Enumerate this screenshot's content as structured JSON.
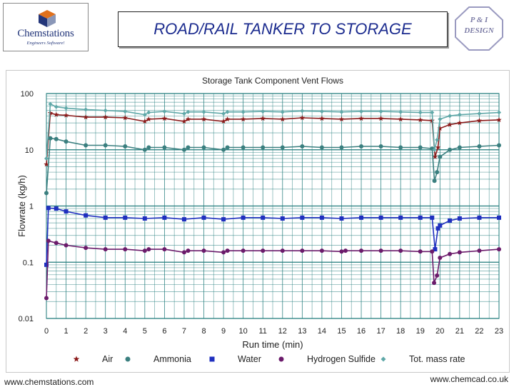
{
  "header": {
    "logo_name": "Chemstations",
    "logo_tagline": "Engineers Software!",
    "title": "ROAD/RAIL TANKER TO STORAGE",
    "badge_line1": "P & I",
    "badge_line2": "DESIGN"
  },
  "footer": {
    "left": "www.chemstations.com",
    "right": "www.chemcad.co.uk"
  },
  "colors": {
    "title": "#1c2c8f",
    "air": "#8b1a1a",
    "ammonia": "#3a7f7f",
    "water": "#1f2fbf",
    "hydrogen_sulfide": "#6b1b6b",
    "tot_mass_rate": "#5fa8a8",
    "grid": "#1f7a7a"
  },
  "chart_data": {
    "type": "line",
    "title": "Storage Tank Component Vent Flows",
    "xlabel": "Run time  (min)",
    "ylabel": "Flowrate (kg/h)",
    "y_scale": "log",
    "xlim": [
      0,
      23
    ],
    "ylim": [
      0.01,
      100
    ],
    "x_ticks": [
      "0",
      "1",
      "2",
      "3",
      "4",
      "5",
      "6",
      "7",
      "8",
      "9",
      "10",
      "11",
      "12",
      "13",
      "14",
      "15",
      "16",
      "17",
      "18",
      "19",
      "20",
      "21",
      "22",
      "23"
    ],
    "y_ticks": [
      "100",
      "10",
      "1",
      "0.1",
      "0.01"
    ],
    "grid": true,
    "legend_position": "bottom",
    "series": [
      {
        "name": "Air",
        "marker": "star",
        "points": [
          [
            0,
            5.5
          ],
          [
            0.2,
            45
          ],
          [
            0.5,
            42
          ],
          [
            1,
            41
          ],
          [
            2,
            38
          ],
          [
            3,
            38
          ],
          [
            4,
            37
          ],
          [
            5,
            32
          ],
          [
            5.2,
            35
          ],
          [
            6,
            36
          ],
          [
            7,
            32
          ],
          [
            7.2,
            35
          ],
          [
            8,
            35
          ],
          [
            9,
            32
          ],
          [
            9.2,
            35
          ],
          [
            10,
            35
          ],
          [
            11,
            36
          ],
          [
            12,
            35
          ],
          [
            13,
            37
          ],
          [
            14,
            36
          ],
          [
            15,
            35
          ],
          [
            16,
            36
          ],
          [
            17,
            36
          ],
          [
            18,
            35
          ],
          [
            19,
            34
          ],
          [
            19.6,
            33
          ],
          [
            19.75,
            7.5
          ],
          [
            19.9,
            11
          ],
          [
            20,
            24
          ],
          [
            20.5,
            28
          ],
          [
            21,
            30
          ],
          [
            22,
            33
          ],
          [
            23,
            34
          ]
        ]
      },
      {
        "name": "Ammonia",
        "marker": "circle",
        "points": [
          [
            0,
            1.7
          ],
          [
            0.2,
            16
          ],
          [
            0.5,
            15.5
          ],
          [
            1,
            14
          ],
          [
            2,
            12
          ],
          [
            3,
            12
          ],
          [
            4,
            11.5
          ],
          [
            5,
            10
          ],
          [
            5.2,
            11
          ],
          [
            6,
            11
          ],
          [
            7,
            10
          ],
          [
            7.2,
            11
          ],
          [
            8,
            11
          ],
          [
            9,
            10
          ],
          [
            9.2,
            11
          ],
          [
            10,
            11
          ],
          [
            11,
            11
          ],
          [
            12,
            11
          ],
          [
            13,
            11.5
          ],
          [
            14,
            11
          ],
          [
            15,
            11
          ],
          [
            16,
            11.5
          ],
          [
            17,
            11.5
          ],
          [
            18,
            11
          ],
          [
            19,
            11
          ],
          [
            19.6,
            10.5
          ],
          [
            19.72,
            2.8
          ],
          [
            19.85,
            4
          ],
          [
            20,
            7.5
          ],
          [
            20.5,
            10
          ],
          [
            21,
            11
          ],
          [
            22,
            11.5
          ],
          [
            23,
            12
          ]
        ]
      },
      {
        "name": "Water",
        "marker": "square",
        "points": [
          [
            0,
            0.09
          ],
          [
            0.1,
            0.92
          ],
          [
            0.5,
            0.9
          ],
          [
            1,
            0.8
          ],
          [
            2,
            0.68
          ],
          [
            3,
            0.62
          ],
          [
            4,
            0.62
          ],
          [
            5,
            0.6
          ],
          [
            6,
            0.62
          ],
          [
            7,
            0.58
          ],
          [
            8,
            0.62
          ],
          [
            9,
            0.58
          ],
          [
            10,
            0.62
          ],
          [
            11,
            0.62
          ],
          [
            12,
            0.6
          ],
          [
            13,
            0.62
          ],
          [
            14,
            0.62
          ],
          [
            15,
            0.6
          ],
          [
            16,
            0.62
          ],
          [
            17,
            0.62
          ],
          [
            18,
            0.62
          ],
          [
            19,
            0.62
          ],
          [
            19.6,
            0.62
          ],
          [
            19.75,
            0.17
          ],
          [
            19.9,
            0.4
          ],
          [
            20,
            0.45
          ],
          [
            20.5,
            0.55
          ],
          [
            21,
            0.6
          ],
          [
            22,
            0.62
          ],
          [
            23,
            0.62
          ]
        ]
      },
      {
        "name": "Hydrogen Sulfide",
        "marker": "circle",
        "points": [
          [
            0,
            0.023
          ],
          [
            0.1,
            0.24
          ],
          [
            0.5,
            0.22
          ],
          [
            1,
            0.2
          ],
          [
            2,
            0.18
          ],
          [
            3,
            0.17
          ],
          [
            4,
            0.17
          ],
          [
            5,
            0.16
          ],
          [
            5.2,
            0.17
          ],
          [
            6,
            0.17
          ],
          [
            7,
            0.15
          ],
          [
            7.2,
            0.16
          ],
          [
            8,
            0.16
          ],
          [
            9,
            0.15
          ],
          [
            9.2,
            0.16
          ],
          [
            10,
            0.16
          ],
          [
            11,
            0.16
          ],
          [
            12,
            0.16
          ],
          [
            13,
            0.16
          ],
          [
            14,
            0.16
          ],
          [
            15,
            0.155
          ],
          [
            15.2,
            0.16
          ],
          [
            16,
            0.16
          ],
          [
            17,
            0.16
          ],
          [
            18,
            0.16
          ],
          [
            19,
            0.155
          ],
          [
            19.6,
            0.155
          ],
          [
            19.7,
            0.043
          ],
          [
            19.85,
            0.058
          ],
          [
            20,
            0.12
          ],
          [
            20.5,
            0.14
          ],
          [
            21,
            0.15
          ],
          [
            22,
            0.16
          ],
          [
            23,
            0.17
          ]
        ]
      },
      {
        "name": "Tot. mass rate",
        "marker": "diamond",
        "points": [
          [
            0,
            7
          ],
          [
            0.2,
            65
          ],
          [
            0.5,
            58
          ],
          [
            1,
            55
          ],
          [
            2,
            52
          ],
          [
            3,
            50
          ],
          [
            4,
            48
          ],
          [
            5,
            42
          ],
          [
            5.2,
            46
          ],
          [
            6,
            48
          ],
          [
            7,
            44
          ],
          [
            7.2,
            47
          ],
          [
            8,
            47
          ],
          [
            9,
            44
          ],
          [
            9.2,
            47
          ],
          [
            10,
            47
          ],
          [
            11,
            48
          ],
          [
            12,
            47
          ],
          [
            13,
            49
          ],
          [
            14,
            48
          ],
          [
            15,
            47
          ],
          [
            16,
            48
          ],
          [
            17,
            48
          ],
          [
            18,
            47
          ],
          [
            19,
            46
          ],
          [
            19.6,
            46
          ],
          [
            19.72,
            10
          ],
          [
            19.85,
            15
          ],
          [
            20,
            35
          ],
          [
            20.5,
            40
          ],
          [
            21,
            42
          ],
          [
            22,
            44
          ],
          [
            23,
            46
          ]
        ]
      }
    ]
  }
}
